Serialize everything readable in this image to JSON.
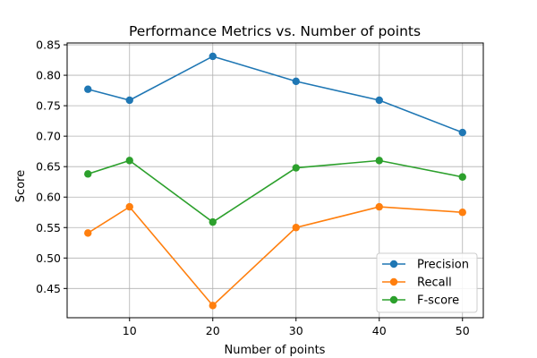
{
  "chart_data": {
    "type": "line",
    "title": "Performance Metrics vs. Number of points",
    "xlabel": "Number of points",
    "ylabel": "Score",
    "x": [
      5,
      10,
      20,
      30,
      40,
      50
    ],
    "xticks": [
      "10",
      "20",
      "30",
      "40",
      "50"
    ],
    "yticks": [
      "0.45",
      "0.50",
      "0.55",
      "0.60",
      "0.65",
      "0.70",
      "0.75",
      "0.80",
      "0.85"
    ],
    "xlim": [
      2.5,
      52.5
    ],
    "ylim": [
      0.402,
      0.853
    ],
    "grid": true,
    "legend_position": "lower-right",
    "series": [
      {
        "name": "Precision",
        "color": "#1f77b4",
        "values": [
          0.777,
          0.759,
          0.831,
          0.79,
          0.759,
          0.706
        ]
      },
      {
        "name": "Recall",
        "color": "#ff7f0e",
        "values": [
          0.541,
          0.584,
          0.422,
          0.55,
          0.584,
          0.575
        ]
      },
      {
        "name": "F-score",
        "color": "#2ca02c",
        "values": [
          0.638,
          0.66,
          0.559,
          0.648,
          0.66,
          0.633
        ]
      }
    ]
  }
}
